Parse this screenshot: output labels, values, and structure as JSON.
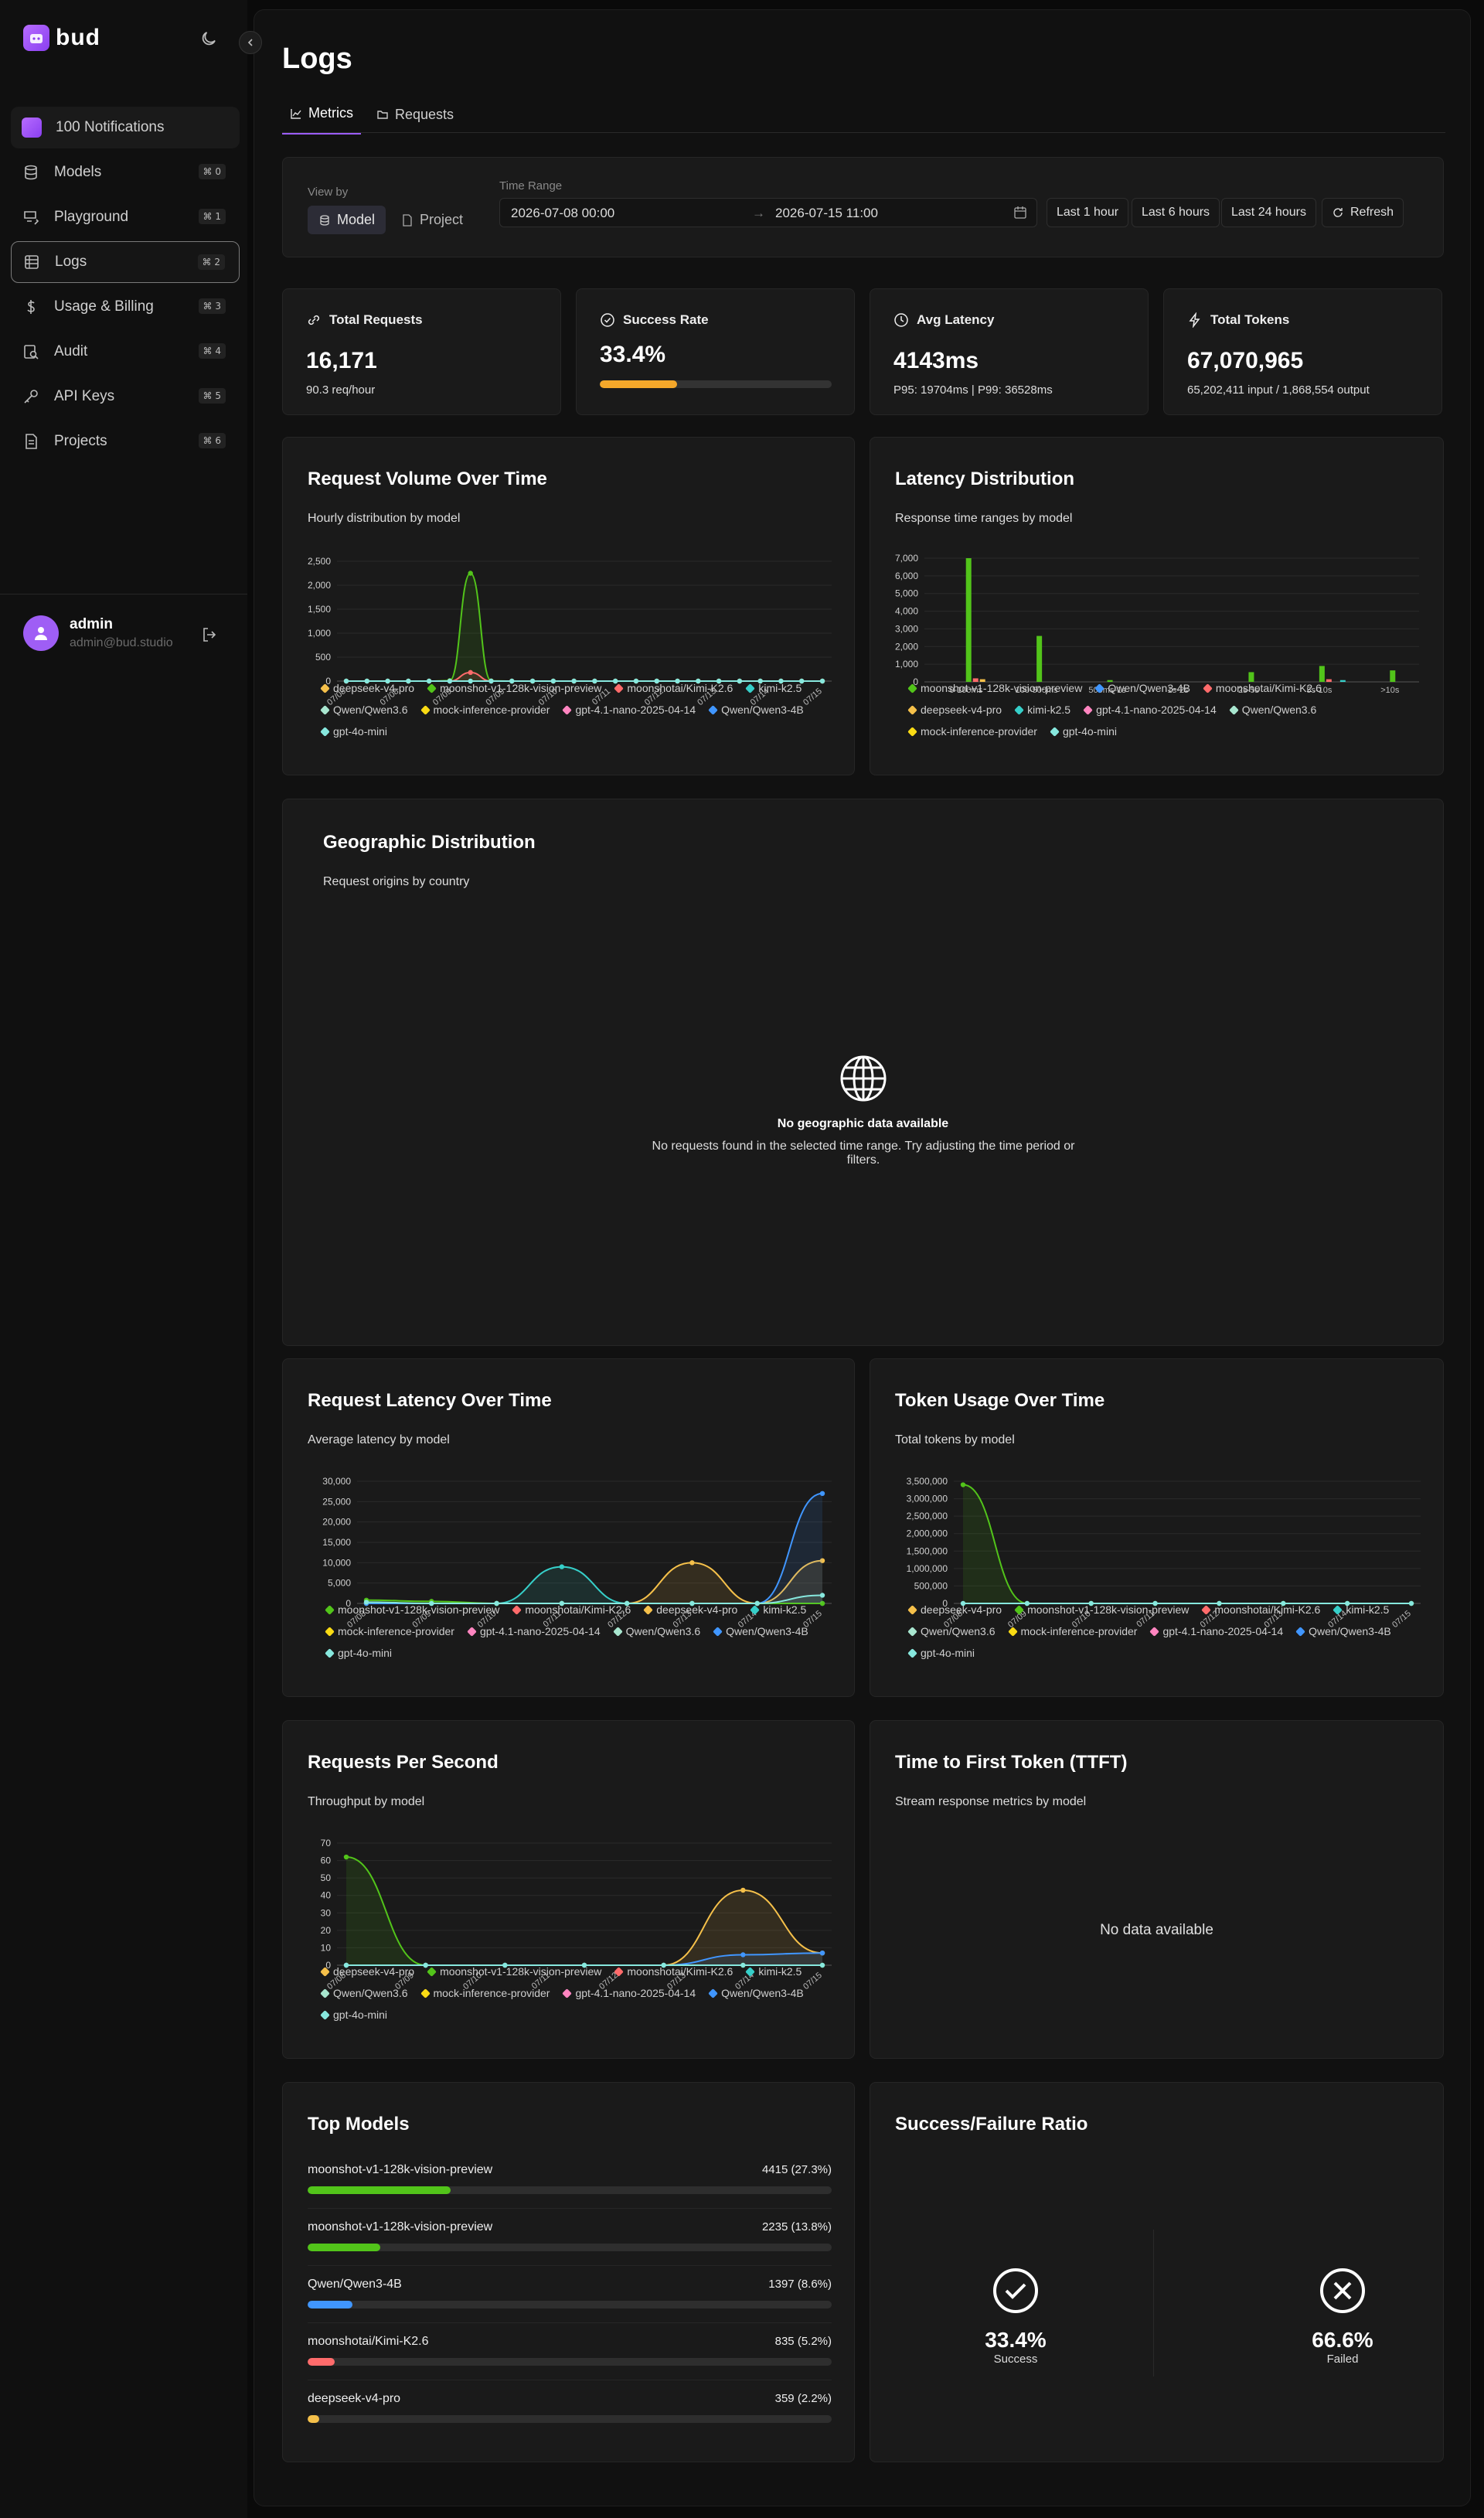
{
  "app": {
    "logo_text": "bud",
    "notifications_label": "100 Notifications"
  },
  "nav": [
    {
      "label": "Models",
      "kbd": "⌘ 0",
      "icon": "database-icon"
    },
    {
      "label": "Playground",
      "kbd": "⌘ 1",
      "icon": "playground-icon"
    },
    {
      "label": "Logs",
      "kbd": "⌘ 2",
      "icon": "logs-icon",
      "active": true
    },
    {
      "label": "Usage & Billing",
      "kbd": "⌘ 3",
      "icon": "dollar-icon"
    },
    {
      "label": "Audit",
      "kbd": "⌘ 4",
      "icon": "audit-icon"
    },
    {
      "label": "API Keys",
      "kbd": "⌘ 5",
      "icon": "key-icon"
    },
    {
      "label": "Projects",
      "kbd": "⌘ 6",
      "icon": "document-icon"
    }
  ],
  "user": {
    "name": "admin",
    "email": "admin@bud.studio"
  },
  "page": {
    "title": "Logs",
    "tabs": [
      {
        "label": "Metrics",
        "active": true
      },
      {
        "label": "Requests",
        "active": false
      }
    ]
  },
  "filters": {
    "view_by_label": "View by",
    "view_options": [
      "Model",
      "Project"
    ],
    "view_selected": "Model",
    "time_range_label": "Time Range",
    "start": "2026-07-08 00:00",
    "arrow": "→",
    "end": "2026-07-15 11:00",
    "quick": [
      "Last 1 hour",
      "Last 6 hours",
      "Last 24 hours"
    ],
    "refresh": "Refresh"
  },
  "stats": [
    {
      "title": "Total Requests",
      "value": "16,171",
      "sub": "90.3 req/hour",
      "icon": "link-icon"
    },
    {
      "title": "Success Rate",
      "value": "33.4%",
      "progress": 0.334,
      "icon": "check-circle-icon"
    },
    {
      "title": "Avg Latency",
      "value": "4143ms",
      "sub": "P95: 19704ms | P99: 36528ms",
      "icon": "clock-icon"
    },
    {
      "title": "Total Tokens",
      "value": "67,070,965",
      "sub": "65,202,411 input / 1,868,554 output",
      "icon": "bolt-icon"
    }
  ],
  "colors": {
    "purple": "#9b5cf6",
    "deepseek-v4-pro": "#f5c04a",
    "moonshot-v1-128k-vision-preview": "#52c41a",
    "moonshotai/Kimi-K2.6": "#ff6b6b",
    "kimi-k2.5": "#36cfc9",
    "Qwen/Qwen3.6": "#a8e6cf",
    "mock-inference-provider": "#fadb14",
    "gpt-4.1-nano-2025-04-14": "#ff85c0",
    "Qwen/Qwen3-4B": "#4096ff",
    "gpt-4o-mini": "#87e8de"
  },
  "request_volume": {
    "title": "Request Volume Over Time",
    "subtitle": "Hourly distribution by model",
    "legend": [
      "deepseek-v4-pro",
      "moonshot-v1-128k-vision-preview",
      "moonshotai/Kimi-K2.6",
      "kimi-k2.5",
      "Qwen/Qwen3.6",
      "mock-inference-provider",
      "gpt-4.1-nano-2025-04-14",
      "Qwen/Qwen3-4B",
      "gpt-4o-mini"
    ]
  },
  "latency_dist": {
    "title": "Latency Distribution",
    "subtitle": "Response time ranges by model",
    "legend": [
      "moonshot-v1-128k-vision-preview",
      "Qwen/Qwen3-4B",
      "moonshotai/Kimi-K2.6",
      "deepseek-v4-pro",
      "kimi-k2.5",
      "gpt-4.1-nano-2025-04-14",
      "Qwen/Qwen3.6",
      "mock-inference-provider",
      "gpt-4o-mini"
    ]
  },
  "geo": {
    "title": "Geographic Distribution",
    "subtitle": "Request origins by country",
    "empty_title": "No geographic data available",
    "empty_text": "No requests found in the selected time range. Try adjusting the time period or filters."
  },
  "req_latency": {
    "title": "Request Latency Over Time",
    "subtitle": "Average latency by model",
    "legend": [
      "moonshot-v1-128k-vision-preview",
      "moonshotai/Kimi-K2.6",
      "deepseek-v4-pro",
      "kimi-k2.5",
      "mock-inference-provider",
      "gpt-4.1-nano-2025-04-14",
      "Qwen/Qwen3.6",
      "Qwen/Qwen3-4B",
      "gpt-4o-mini"
    ]
  },
  "token_usage": {
    "title": "Token Usage Over Time",
    "subtitle": "Total tokens by model",
    "legend": [
      "deepseek-v4-pro",
      "moonshot-v1-128k-vision-preview",
      "moonshotai/Kimi-K2.6",
      "kimi-k2.5",
      "Qwen/Qwen3.6",
      "mock-inference-provider",
      "gpt-4.1-nano-2025-04-14",
      "Qwen/Qwen3-4B",
      "gpt-4o-mini"
    ]
  },
  "rps": {
    "title": "Requests Per Second",
    "subtitle": "Throughput by model",
    "legend": [
      "deepseek-v4-pro",
      "moonshot-v1-128k-vision-preview",
      "moonshotai/Kimi-K2.6",
      "kimi-k2.5",
      "Qwen/Qwen3.6",
      "mock-inference-provider",
      "gpt-4.1-nano-2025-04-14",
      "Qwen/Qwen3-4B",
      "gpt-4o-mini"
    ]
  },
  "ttft": {
    "title": "Time to First Token (TTFT)",
    "subtitle": "Stream response metrics by model",
    "empty": "No data available"
  },
  "top_models": {
    "title": "Top Models",
    "rows": [
      {
        "name": "moonshot-v1-128k-vision-preview",
        "value": "4415 (27.3%)",
        "pct": 0.273,
        "color": "#52c41a"
      },
      {
        "name": "moonshot-v1-128k-vision-preview",
        "value": "2235 (13.8%)",
        "pct": 0.138,
        "color": "#52c41a"
      },
      {
        "name": "Qwen/Qwen3-4B",
        "value": "1397 (8.6%)",
        "pct": 0.086,
        "color": "#4096ff"
      },
      {
        "name": "moonshotai/Kimi-K2.6",
        "value": "835 (5.2%)",
        "pct": 0.052,
        "color": "#ff6b6b"
      },
      {
        "name": "deepseek-v4-pro",
        "value": "359 (2.2%)",
        "pct": 0.022,
        "color": "#f5c04a"
      }
    ]
  },
  "ratio": {
    "title": "Success/Failure Ratio",
    "success_value": "33.4%",
    "success_label": "Success",
    "failed_value": "66.6%",
    "failed_label": "Failed"
  },
  "chart_data": [
    {
      "type": "line",
      "title": "Request Volume Over Time",
      "ylim": [
        0,
        2500
      ],
      "yticks": [
        "2,500",
        "2,000",
        "1,500",
        "1,000",
        "500",
        "0"
      ],
      "xticks": [
        "07/08",
        "07/08",
        "07/09",
        "07/09",
        "07/10",
        "07/11",
        "07/12",
        "07/13",
        "07/14",
        "07/15"
      ],
      "n_points": 24,
      "series": [
        {
          "name": "moonshot-v1-128k-vision-preview",
          "values": [
            0,
            0,
            0,
            0,
            0,
            10,
            2250,
            5,
            0,
            0,
            0,
            0,
            0,
            0,
            0,
            0,
            0,
            0,
            0,
            0,
            0,
            0,
            0,
            0
          ]
        },
        {
          "name": "moonshotai/Kimi-K2.6",
          "values": [
            0,
            0,
            0,
            0,
            0,
            0,
            180,
            0,
            0,
            0,
            0,
            0,
            0,
            0,
            0,
            0,
            0,
            0,
            0,
            0,
            0,
            0,
            0,
            0
          ]
        },
        {
          "name": "gpt-4o-mini",
          "values": [
            0,
            0,
            0,
            0,
            0,
            0,
            0,
            0,
            0,
            0,
            0,
            0,
            0,
            0,
            0,
            0,
            0,
            0,
            0,
            0,
            0,
            0,
            0,
            0
          ]
        }
      ]
    },
    {
      "type": "bar",
      "title": "Latency Distribution",
      "ylim": [
        0,
        7000
      ],
      "yticks": [
        "7,000",
        "6,000",
        "5,000",
        "4,000",
        "3,000",
        "2,000",
        "1,000",
        "0"
      ],
      "categories": [
        "0-100ms",
        "100-500ms",
        "500ms-1s",
        "1s-2s",
        "2s-5s",
        "5s-10s",
        ">10s"
      ],
      "series": [
        {
          "name": "moonshot-v1-128k-vision-preview",
          "values": [
            7000,
            2600,
            100,
            0,
            550,
            900,
            650
          ]
        },
        {
          "name": "moonshotai/Kimi-K2.6",
          "values": [
            200,
            0,
            0,
            0,
            0,
            150,
            0
          ]
        },
        {
          "name": "deepseek-v4-pro",
          "values": [
            150,
            0,
            0,
            0,
            0,
            0,
            0
          ]
        },
        {
          "name": "kimi-k2.5",
          "values": [
            0,
            0,
            0,
            0,
            0,
            100,
            0
          ]
        }
      ]
    },
    {
      "type": "line",
      "title": "Request Latency Over Time",
      "ylim": [
        0,
        30000
      ],
      "yticks": [
        "30,000",
        "25,000",
        "20,000",
        "15,000",
        "10,000",
        "5,000",
        "0"
      ],
      "xticks": [
        "07/08",
        "07/09",
        "07/10",
        "07/11",
        "07/12",
        "07/13",
        "07/14",
        "07/15"
      ],
      "n_points": 8,
      "series": [
        {
          "name": "kimi-k2.5",
          "values": [
            0,
            0,
            0,
            9000,
            0,
            0,
            0,
            0
          ]
        },
        {
          "name": "deepseek-v4-pro",
          "values": [
            0,
            0,
            0,
            0,
            0,
            10000,
            0,
            10500
          ]
        },
        {
          "name": "Qwen/Qwen3-4B",
          "values": [
            0,
            0,
            0,
            0,
            0,
            0,
            0,
            27000
          ]
        },
        {
          "name": "moonshot-v1-128k-vision-preview",
          "values": [
            800,
            500,
            0,
            0,
            0,
            0,
            0,
            0
          ]
        },
        {
          "name": "gpt-4o-mini",
          "values": [
            300,
            0,
            0,
            0,
            0,
            0,
            0,
            2000
          ]
        }
      ]
    },
    {
      "type": "line",
      "title": "Token Usage Over Time",
      "ylim": [
        0,
        3500000
      ],
      "yticks": [
        "3,500,000",
        "3,000,000",
        "2,500,000",
        "2,000,000",
        "1,500,000",
        "1,000,000",
        "500,000",
        "0"
      ],
      "xticks": [
        "07/08",
        "07/09",
        "07/10",
        "07/11",
        "07/12",
        "07/13",
        "07/14",
        "07/15"
      ],
      "n_points": 8,
      "series": [
        {
          "name": "moonshot-v1-128k-vision-preview",
          "values": [
            3400000,
            0,
            0,
            0,
            0,
            0,
            0,
            0
          ]
        },
        {
          "name": "gpt-4o-mini",
          "values": [
            0,
            0,
            0,
            0,
            0,
            0,
            0,
            0
          ]
        }
      ]
    },
    {
      "type": "line",
      "title": "Requests Per Second",
      "ylim": [
        0,
        70
      ],
      "yticks": [
        "70",
        "60",
        "50",
        "40",
        "30",
        "20",
        "10",
        "0"
      ],
      "xticks": [
        "07/08",
        "07/09",
        "07/10",
        "07/11",
        "07/12",
        "07/13",
        "07/14",
        "07/15"
      ],
      "n_points": 7,
      "series": [
        {
          "name": "moonshot-v1-128k-vision-preview",
          "values": [
            62,
            0,
            0,
            0,
            0,
            0,
            0
          ]
        },
        {
          "name": "deepseek-v4-pro",
          "values": [
            0,
            0,
            0,
            0,
            0,
            43,
            7
          ]
        },
        {
          "name": "Qwen/Qwen3-4B",
          "values": [
            0,
            0,
            0,
            0,
            0,
            6,
            7
          ]
        },
        {
          "name": "gpt-4o-mini",
          "values": [
            0,
            0,
            0,
            0,
            0,
            0,
            0
          ]
        }
      ]
    }
  ]
}
